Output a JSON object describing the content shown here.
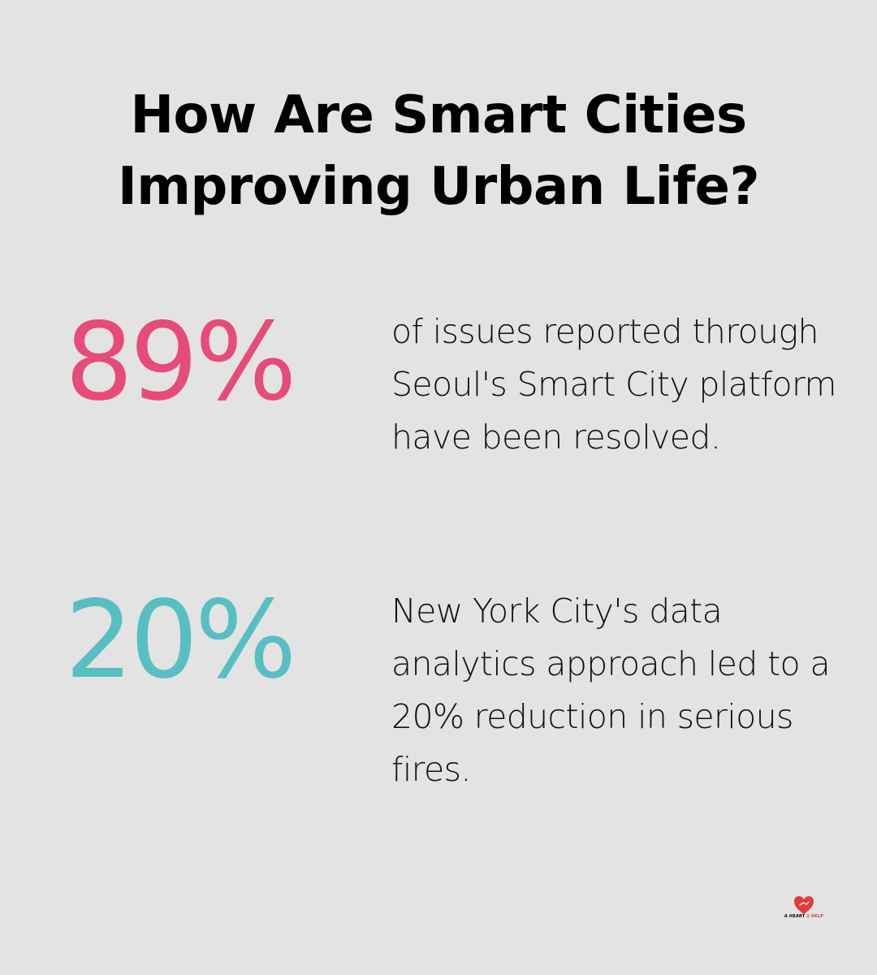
{
  "title": {
    "line1": "How Are Smart Cities",
    "line2": "Improving Urban Life?"
  },
  "stats": [
    {
      "value": "89%",
      "description": "of issues reported through Seoul's Smart City platform have been resolved.",
      "color": "#e64b79"
    },
    {
      "value": "20%",
      "description": "New York City's data analytics approach led to a 20% reduction in serious fires.",
      "color": "#57bfc2"
    }
  ],
  "logo": {
    "text_part1": "A HEART ",
    "text_part2": "2 HELP",
    "accent_color": "#e43b3b"
  }
}
